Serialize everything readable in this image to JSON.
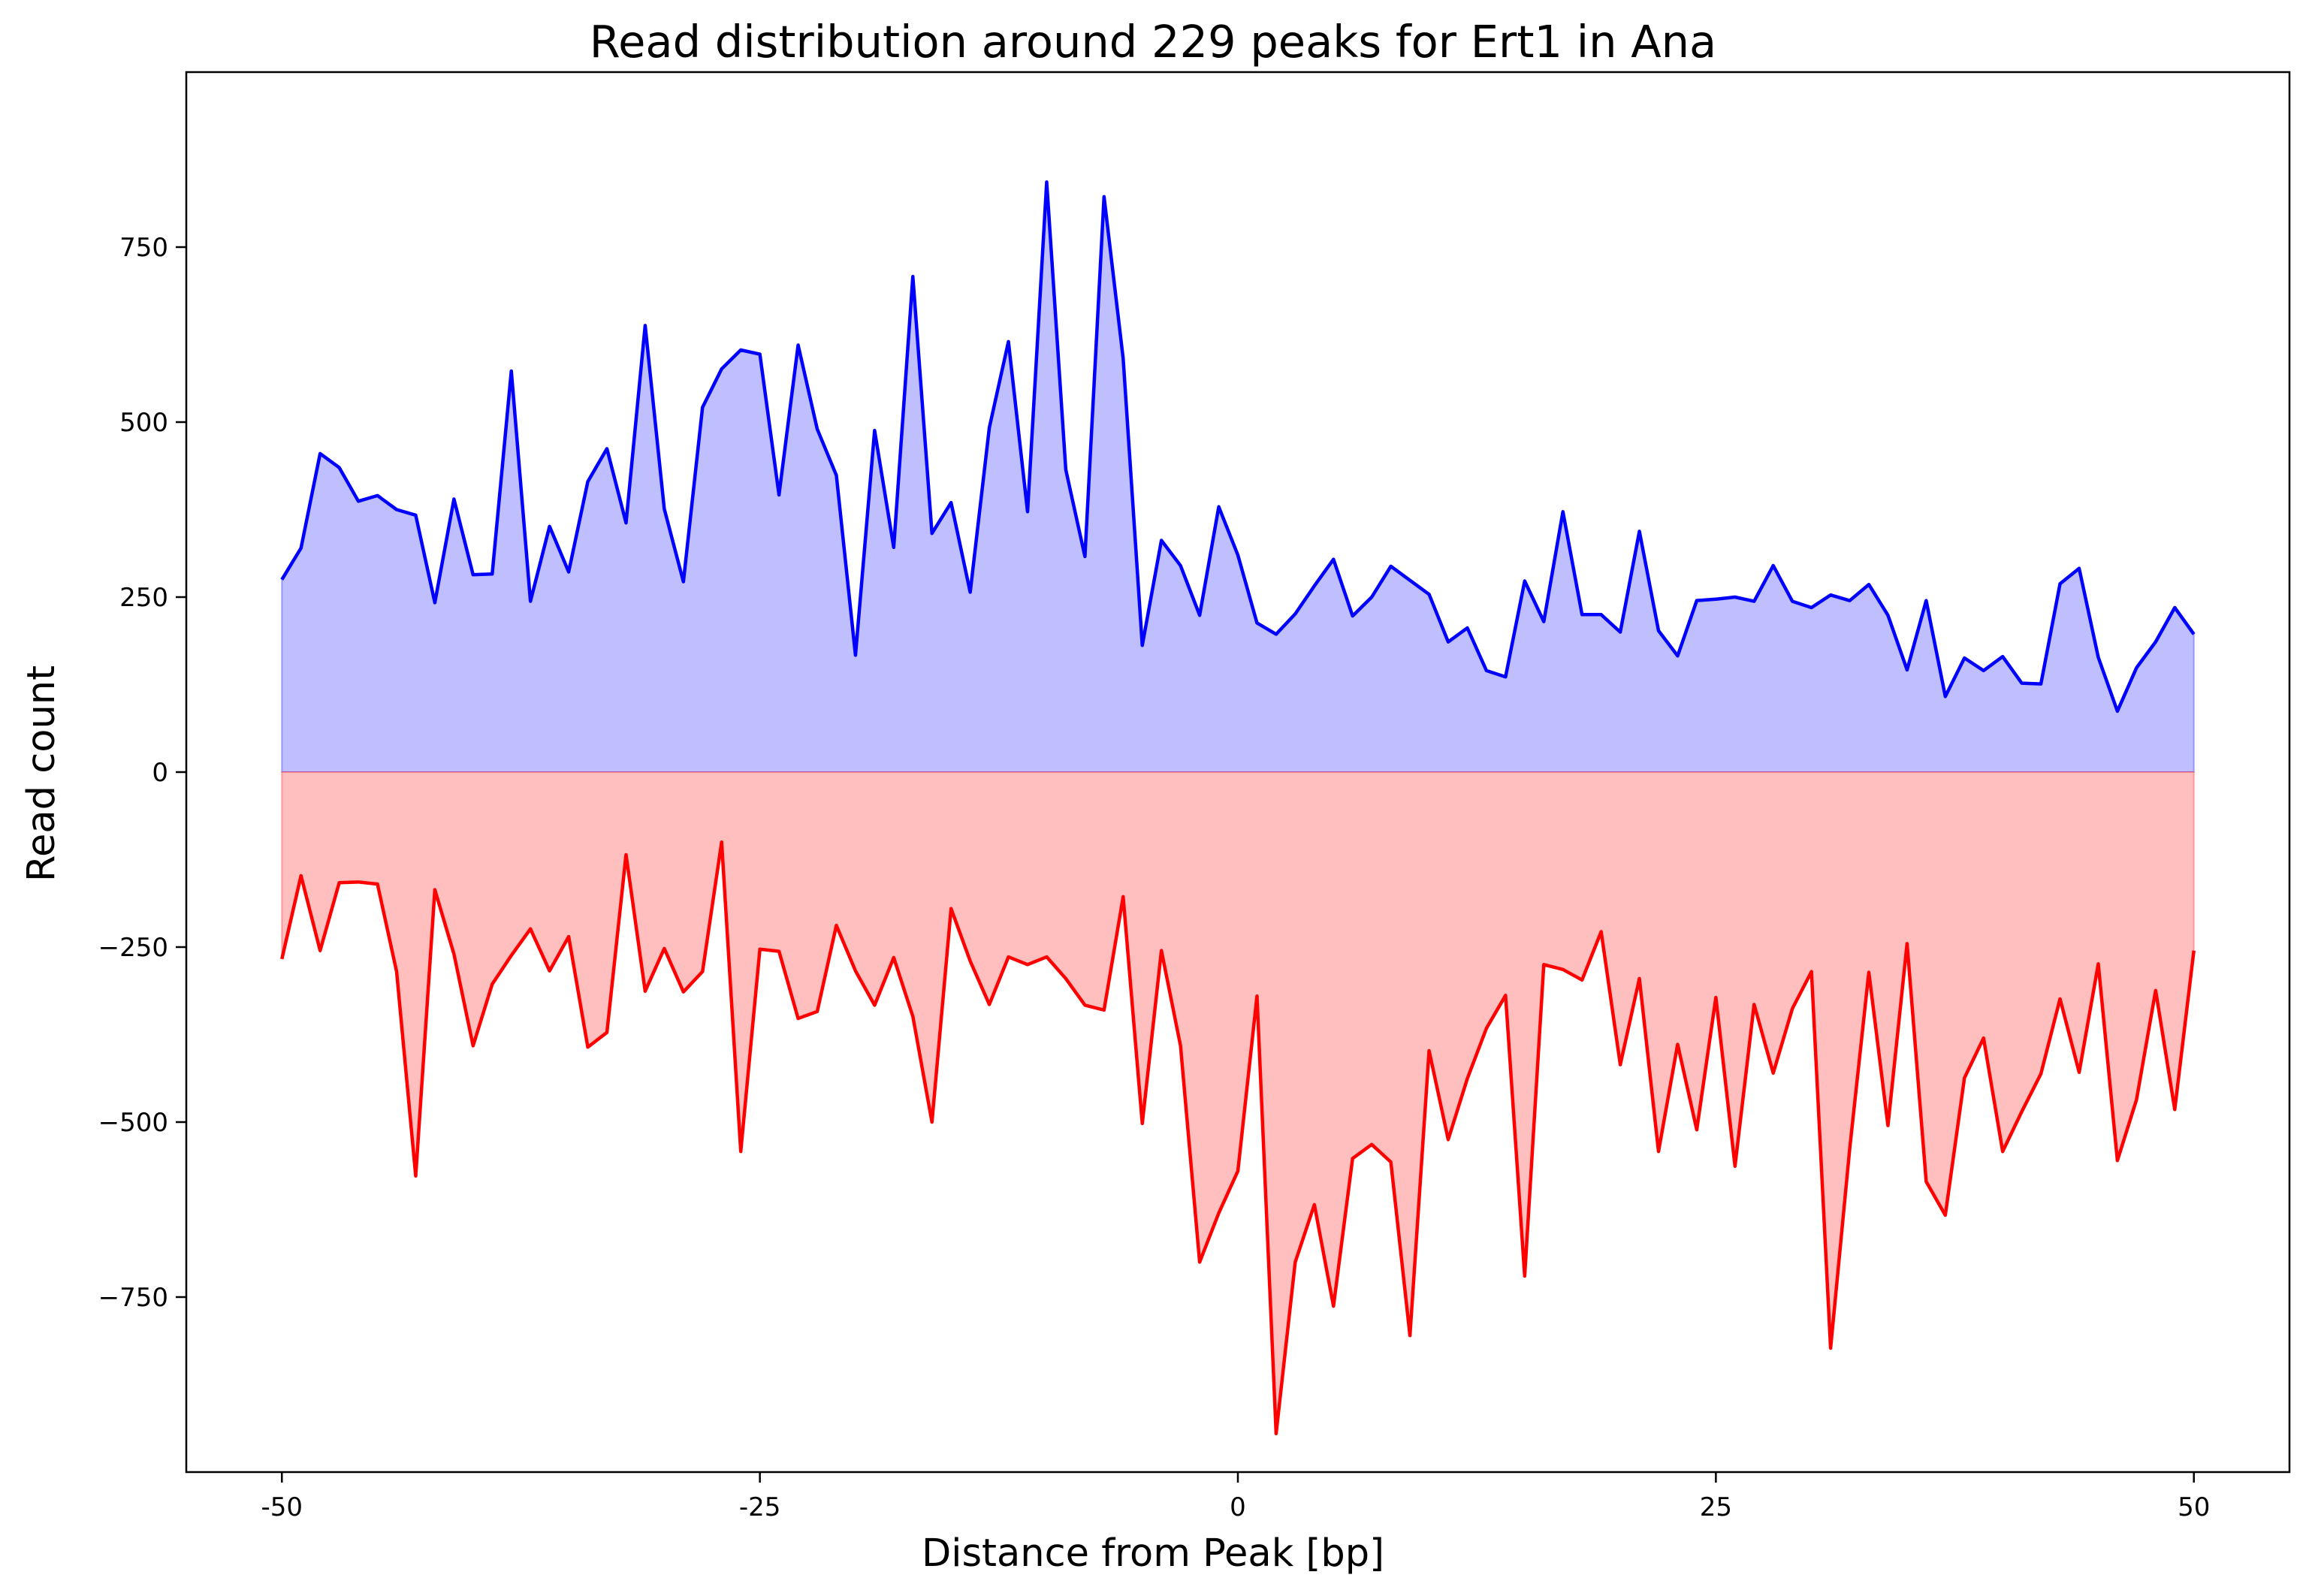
{
  "chart_data": {
    "type": "area",
    "title": "Read distribution around 229 peaks for Ert1 in Ana",
    "xlabel": "Distance from Peak [bp]",
    "ylabel": "Read count",
    "xlim": [
      -55,
      55
    ],
    "ylim": [
      -1000,
      1000
    ],
    "xticks": [
      -50,
      -25,
      0,
      25,
      50
    ],
    "xtick_labels": [
      "-50",
      "-25",
      "0",
      "25",
      "50"
    ],
    "yticks": [
      750,
      500,
      250,
      0,
      -250,
      -500,
      -750
    ],
    "ytick_labels": [
      "750",
      "500",
      "250",
      "0",
      "−250",
      "−500",
      "−750"
    ],
    "grid": false,
    "legend": "none",
    "x": [
      -50,
      -49,
      -48,
      -47,
      -46,
      -45,
      -44,
      -43,
      -42,
      -41,
      -40,
      -39,
      -38,
      -37,
      -36,
      -35,
      -34,
      -33,
      -32,
      -31,
      -30,
      -29,
      -28,
      -27,
      -26,
      -25,
      -24,
      -23,
      -22,
      -21,
      -20,
      -19,
      -18,
      -17,
      -16,
      -15,
      -14,
      -13,
      -12,
      -11,
      -10,
      -9,
      -8,
      -7,
      -6,
      -5,
      -4,
      -3,
      -2,
      -1,
      0,
      1,
      2,
      3,
      4,
      5,
      6,
      7,
      8,
      9,
      10,
      11,
      12,
      13,
      14,
      15,
      16,
      17,
      18,
      19,
      20,
      21,
      22,
      23,
      24,
      25,
      26,
      27,
      28,
      29,
      30,
      31,
      32,
      33,
      34,
      35,
      36,
      37,
      38,
      39,
      40,
      41,
      42,
      43,
      44,
      45,
      46,
      47,
      48,
      49,
      50
    ],
    "series": [
      {
        "color": "#0000ff",
        "fill": "#bfbfff",
        "values": [
          275,
          320,
          455,
          435,
          387,
          395,
          375,
          367,
          242,
          390,
          282,
          283,
          573,
          244,
          351,
          286,
          415,
          462,
          356,
          638,
          376,
          272,
          521,
          576,
          603,
          597,
          396,
          610,
          490,
          424,
          167,
          488,
          321,
          708,
          341,
          385,
          257,
          492,
          615,
          372,
          843,
          432,
          308,
          822,
          591,
          181,
          331,
          295,
          224,
          379,
          310,
          213,
          197,
          226,
          266,
          304,
          223,
          250,
          294,
          274,
          254,
          186,
          206,
          145,
          136,
          273,
          215,
          372,
          225,
          225,
          200,
          344,
          202,
          166,
          245,
          247,
          250,
          244,
          295,
          244,
          235,
          253,
          245,
          268,
          224,
          146,
          245,
          108,
          163,
          145,
          165,
          127,
          126,
          269,
          291,
          164,
          87,
          149,
          186,
          235,
          197
        ]
      },
      {
        "color": "#ff0000",
        "fill": "#ffbfbf",
        "values": [
          -267,
          -148,
          -255,
          -158,
          -157,
          -160,
          -285,
          -577,
          -168,
          -260,
          -391,
          -303,
          -262,
          -224,
          -284,
          -235,
          -393,
          -372,
          -118,
          -313,
          -252,
          -314,
          -285,
          -100,
          -542,
          -253,
          -256,
          -352,
          -342,
          -219,
          -284,
          -333,
          -265,
          -349,
          -500,
          -195,
          -270,
          -332,
          -264,
          -275,
          -264,
          -295,
          -333,
          -340,
          -178,
          -502,
          -255,
          -391,
          -700,
          -630,
          -570,
          -320,
          -945,
          -700,
          -618,
          -763,
          -552,
          -532,
          -557,
          -805,
          -398,
          -525,
          -438,
          -366,
          -319,
          -720,
          -275,
          -282,
          -297,
          -228,
          -418,
          -295,
          -542,
          -389,
          -511,
          -322,
          -563,
          -332,
          -430,
          -338,
          -285,
          -823,
          -538,
          -286,
          -505,
          -245,
          -585,
          -633,
          -437,
          -380,
          -542,
          -485,
          -431,
          -324,
          -429,
          -274,
          -555,
          -468,
          -312,
          -482,
          -255
        ]
      }
    ]
  }
}
